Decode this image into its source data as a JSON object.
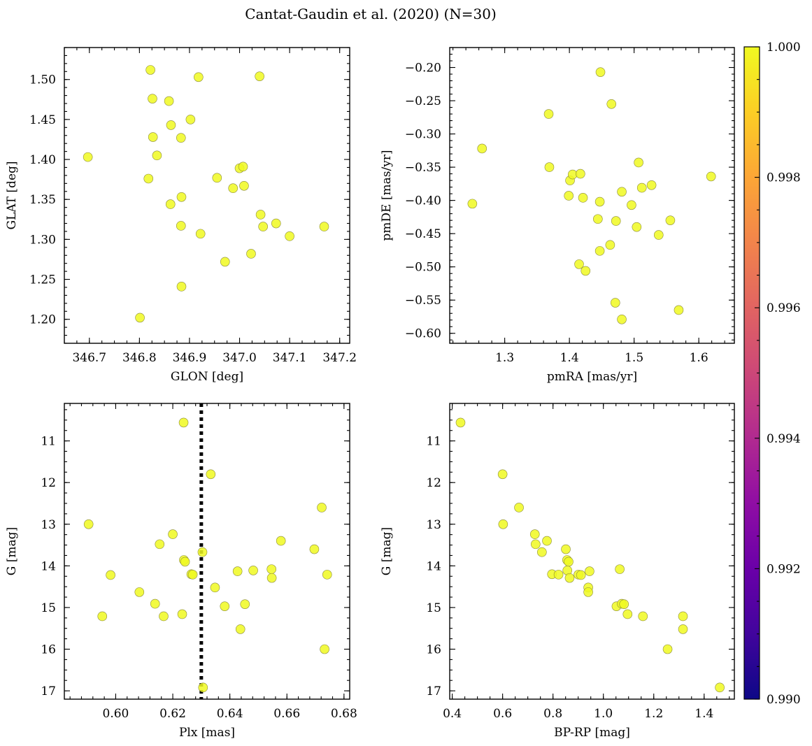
{
  "title": "Cantat-Gaudin et al. (2020) (N=30)",
  "point_color": "#f0f921",
  "colorbar": {
    "min": 0.99,
    "max": 1.0,
    "ticks": [
      "0.990",
      "0.992",
      "0.994",
      "0.996",
      "0.998",
      "1.000"
    ],
    "colormap": "plasma"
  },
  "chart_data": [
    {
      "type": "scatter",
      "xlabel": "GLON [deg]",
      "ylabel": "GLAT [deg]",
      "xlim": [
        346.65,
        347.22
      ],
      "ylim": [
        1.17,
        1.54
      ],
      "y_inverted": false,
      "xticks": [
        "346.7",
        "346.8",
        "346.9",
        "347.0",
        "347.1",
        "347.2"
      ],
      "yticks": [
        "1.20",
        "1.25",
        "1.30",
        "1.35",
        "1.40",
        "1.45",
        "1.50"
      ],
      "x": [
        346.822,
        346.918,
        347.04,
        346.826,
        346.859,
        346.902,
        346.863,
        346.827,
        346.883,
        346.697,
        346.835,
        346.818,
        347.0,
        347.007,
        346.955,
        346.862,
        346.987,
        347.009,
        346.884,
        347.042,
        347.073,
        347.047,
        346.883,
        347.169,
        346.922,
        347.1,
        347.023,
        346.971,
        346.884,
        346.801
      ],
      "y": [
        1.512,
        1.503,
        1.504,
        1.476,
        1.473,
        1.45,
        1.443,
        1.428,
        1.427,
        1.403,
        1.405,
        1.376,
        1.389,
        1.391,
        1.377,
        1.344,
        1.364,
        1.367,
        1.353,
        1.331,
        1.32,
        1.316,
        1.317,
        1.316,
        1.307,
        1.304,
        1.282,
        1.272,
        1.241,
        1.202
      ]
    },
    {
      "type": "scatter",
      "xlabel": "pmRA [mas/yr]",
      "ylabel": "pmDE [mas/yr]",
      "xlim": [
        1.215,
        1.655
      ],
      "ylim": [
        -0.615,
        -0.17
      ],
      "y_inverted": false,
      "xticks": [
        "1.3",
        "1.4",
        "1.5",
        "1.6"
      ],
      "yticks": [
        "−0.60",
        "−0.55",
        "−0.50",
        "−0.45",
        "−0.40",
        "−0.35",
        "−0.30",
        "−0.25",
        "−0.20"
      ],
      "x": [
        1.448,
        1.465,
        1.368,
        1.265,
        1.369,
        1.401,
        1.405,
        1.417,
        1.507,
        1.619,
        1.512,
        1.527,
        1.399,
        1.421,
        1.481,
        1.25,
        1.447,
        1.496,
        1.444,
        1.472,
        1.504,
        1.556,
        1.538,
        1.463,
        1.447,
        1.415,
        1.425,
        1.471,
        1.569,
        1.481
      ],
      "y": [
        -0.207,
        -0.255,
        -0.27,
        -0.322,
        -0.35,
        -0.37,
        -0.361,
        -0.36,
        -0.343,
        -0.364,
        -0.381,
        -0.377,
        -0.393,
        -0.396,
        -0.387,
        -0.405,
        -0.402,
        -0.407,
        -0.428,
        -0.431,
        -0.44,
        -0.43,
        -0.452,
        -0.467,
        -0.476,
        -0.496,
        -0.506,
        -0.554,
        -0.565,
        -0.579
      ]
    },
    {
      "type": "scatter",
      "xlabel": "Plx [mas]",
      "ylabel": "G [mag]",
      "xlim": [
        0.582,
        0.682
      ],
      "ylim": [
        17.2,
        10.1
      ],
      "y_inverted": true,
      "xticks": [
        "0.60",
        "0.62",
        "0.64",
        "0.66",
        "0.68"
      ],
      "yticks": [
        "11",
        "12",
        "13",
        "14",
        "15",
        "16",
        "17"
      ],
      "vline_x": 0.63,
      "x": [
        0.6238,
        0.6333,
        0.6722,
        0.5905,
        0.6154,
        0.62,
        0.6579,
        0.6696,
        0.6304,
        0.6239,
        0.6243,
        0.6265,
        0.627,
        0.6427,
        0.6482,
        0.6546,
        0.6547,
        0.6741,
        0.5982,
        0.6348,
        0.6083,
        0.6138,
        0.6382,
        0.6453,
        0.5953,
        0.6168,
        0.6233,
        0.6437,
        0.6732,
        0.6306
      ],
      "y": [
        10.56,
        11.8,
        12.6,
        13.0,
        13.48,
        13.24,
        13.4,
        13.6,
        13.67,
        13.86,
        13.9,
        14.2,
        14.21,
        14.13,
        14.11,
        14.08,
        14.29,
        14.21,
        14.22,
        14.52,
        14.63,
        14.91,
        14.97,
        14.92,
        15.21,
        15.21,
        15.16,
        15.52,
        16.0,
        16.92
      ]
    },
    {
      "type": "scatter",
      "xlabel": "BP-RP [mag]",
      "ylabel": "G [mag]",
      "xlim": [
        0.39,
        1.52
      ],
      "ylim": [
        17.2,
        10.1
      ],
      "y_inverted": true,
      "xticks": [
        "0.4",
        "0.6",
        "0.8",
        "1.0",
        "1.2",
        "1.4"
      ],
      "yticks": [
        "11",
        "12",
        "13",
        "14",
        "15",
        "16",
        "17"
      ],
      "x": [
        0.433,
        0.6,
        0.665,
        0.602,
        0.728,
        0.731,
        0.776,
        0.756,
        0.851,
        0.856,
        0.862,
        0.796,
        0.822,
        0.857,
        0.901,
        0.911,
        0.945,
        0.866,
        1.065,
        0.94,
        0.94,
        1.052,
        1.073,
        1.082,
        1.096,
        1.157,
        1.316,
        1.316,
        1.255,
        1.462
      ],
      "y": [
        10.56,
        11.8,
        12.6,
        13.0,
        13.24,
        13.48,
        13.4,
        13.67,
        13.6,
        13.86,
        13.9,
        14.2,
        14.21,
        14.11,
        14.21,
        14.22,
        14.13,
        14.29,
        14.08,
        14.52,
        14.63,
        14.97,
        14.91,
        14.92,
        15.16,
        15.21,
        15.21,
        15.52,
        16.0,
        16.92
      ]
    }
  ]
}
